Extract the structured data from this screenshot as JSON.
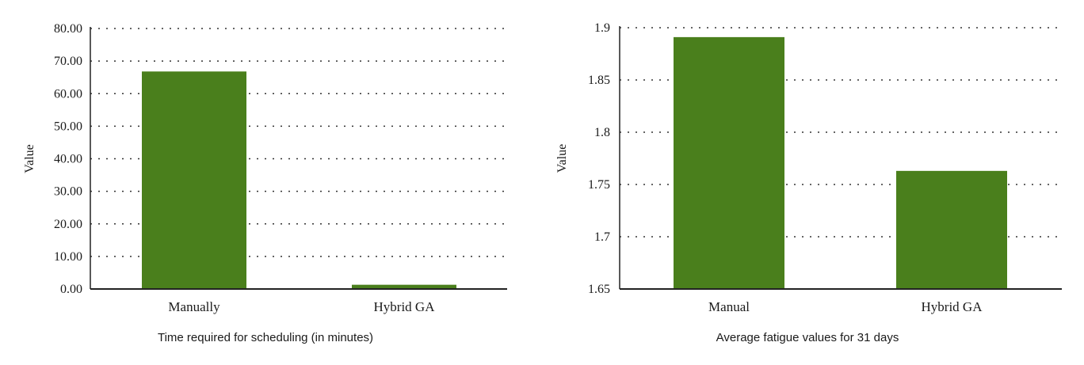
{
  "chart_data": [
    {
      "type": "bar",
      "categories": [
        "Manually",
        "Hybrid GA"
      ],
      "values": [
        66.8,
        1.3
      ],
      "ylabel": "Value",
      "ylim": [
        0,
        80
      ],
      "yticks": [
        "0.00",
        "10.00",
        "20.00",
        "30.00",
        "40.00",
        "50.00",
        "60.00",
        "70.00",
        "80.00"
      ],
      "caption": "Time required for scheduling (in minutes)",
      "grid": true,
      "bar_color": "#4a7f1c"
    },
    {
      "type": "bar",
      "categories": [
        "Manual",
        "Hybrid GA"
      ],
      "values": [
        1.891,
        1.763
      ],
      "ylabel": "Value",
      "ylim": [
        1.65,
        1.9
      ],
      "yticks": [
        "1.65",
        "1.7",
        "1.75",
        "1.8",
        "1.85",
        "1.9"
      ],
      "caption": "Average fatigue values for 31 days",
      "grid": true,
      "bar_color": "#4a7f1c"
    }
  ]
}
